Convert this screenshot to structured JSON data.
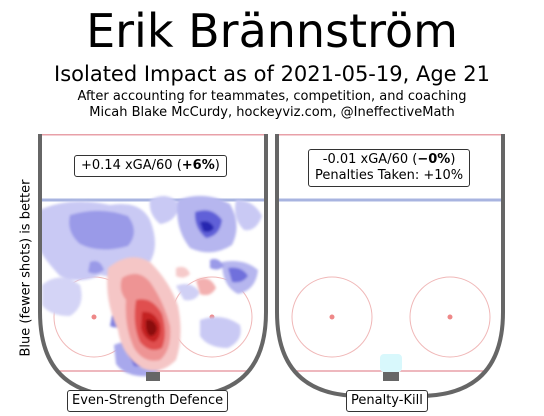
{
  "header": {
    "title": "Erik Brännström",
    "subtitle": "Isolated Impact as of 2021-05-19, Age 21",
    "caption_line1": "After accounting for teammates, competition, and coaching",
    "caption_line2": "Micah Blake McCurdy, hockeyviz.com, @IneffectiveMath"
  },
  "y_axis_label": "Blue (fewer shots) is better",
  "panels": [
    {
      "name": "Even-Strength Defence",
      "xga60": "+0.14 xGA/60",
      "pct_open": " (",
      "pct": "+6%",
      "pct_close": ")"
    },
    {
      "name": "Penalty-Kill",
      "xga60": "-0.01 xGA/60",
      "pct_open": " (",
      "pct": "−0%",
      "pct_close": ")",
      "penalties": "Penalties Taken: +10%"
    }
  ],
  "colors": {
    "positive": "#e02020",
    "negative": "#3535d0",
    "rink_border": "#666666",
    "red_line": "#e8a0a8",
    "blue_line": "#a8b4e0"
  },
  "chart_data": {
    "type": "heatmap",
    "panels": [
      {
        "name": "Even-Strength Defence",
        "xga60": 0.14,
        "pct": 6
      },
      {
        "name": "Penalty-Kill",
        "xga60": -0.01,
        "pct": 0,
        "penalties_taken_pct": 10
      }
    ],
    "color_scale": {
      "blue": "fewer shots (better)",
      "red": "more shots (worse)"
    }
  }
}
